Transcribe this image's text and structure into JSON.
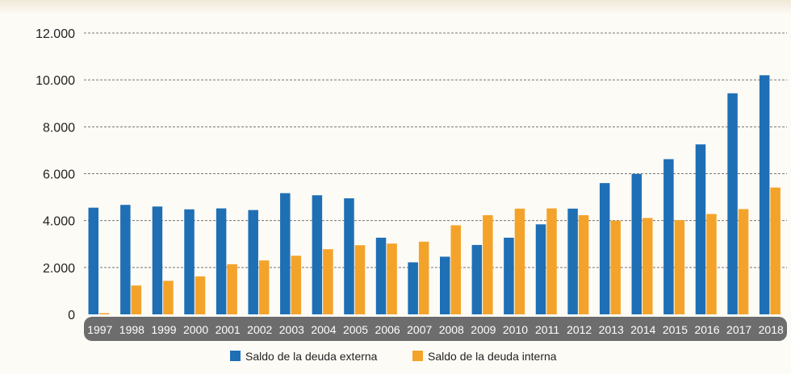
{
  "chart_data": {
    "type": "bar",
    "categories": [
      "1997",
      "1998",
      "1999",
      "2000",
      "2001",
      "2002",
      "2003",
      "2004",
      "2005",
      "2006",
      "2007",
      "2008",
      "2009",
      "2010",
      "2011",
      "2012",
      "2013",
      "2014",
      "2015",
      "2016",
      "2017",
      "2018"
    ],
    "series": [
      {
        "name": "Saldo de la deuda externa",
        "color": "#1f6fb4",
        "values": [
          4550,
          4670,
          4600,
          4480,
          4520,
          4450,
          5170,
          5080,
          4950,
          3270,
          2220,
          2460,
          2960,
          3270,
          3840,
          4510,
          5600,
          5990,
          6620,
          7250,
          9430,
          10200
        ]
      },
      {
        "name": "Saldo de la deuda interna",
        "color": "#f4a32a",
        "values": [
          50,
          1230,
          1430,
          1620,
          2140,
          2300,
          2500,
          2780,
          2950,
          3020,
          3100,
          3800,
          4230,
          4510,
          4520,
          4230,
          4000,
          4110,
          4020,
          4280,
          4490,
          5410
        ]
      }
    ],
    "yticks": [
      "0",
      "2.000",
      "4.000",
      "6.000",
      "8.000",
      "10.000",
      "12.000"
    ],
    "ylim": [
      0,
      12000
    ],
    "grid": true,
    "legend_position": "bottom-center",
    "title": "",
    "xlabel": "",
    "ylabel": ""
  }
}
